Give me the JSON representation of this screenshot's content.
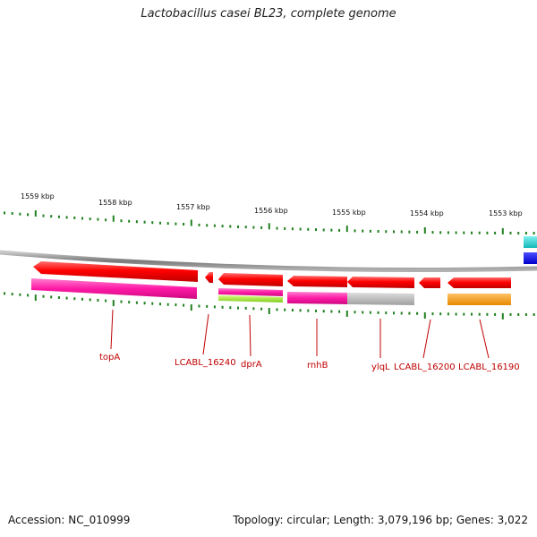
{
  "title": "Lactobacillus casei BL23, complete genome",
  "footer": {
    "accession": "Accession: NC_010999",
    "topology": "Topology: circular; Length: 3,079,196 bp; Genes: 3,022"
  },
  "scale_labels": [
    "1559 kbp",
    "1558 kbp",
    "1557 kbp",
    "1556 kbp",
    "1555 kbp",
    "1554 kbp",
    "1553 kbp"
  ],
  "gene_labels": [
    "topA",
    "LCABL_16240",
    "dprA",
    "rnhB",
    "ylqL",
    "LCABL_16200",
    "LCABL_16190"
  ],
  "colors": {
    "cds_forward": "#ff0000",
    "cog_magenta": "#ff1aa6",
    "cog_green": "#99e633",
    "cog_grey": "#b3b3b3",
    "cog_orange": "#ff9900",
    "cog_cyan": "#1ad1d1",
    "cog_blue": "#0000ff",
    "backbone": "#808080",
    "tick": "#208020",
    "label": "#c00000"
  }
}
